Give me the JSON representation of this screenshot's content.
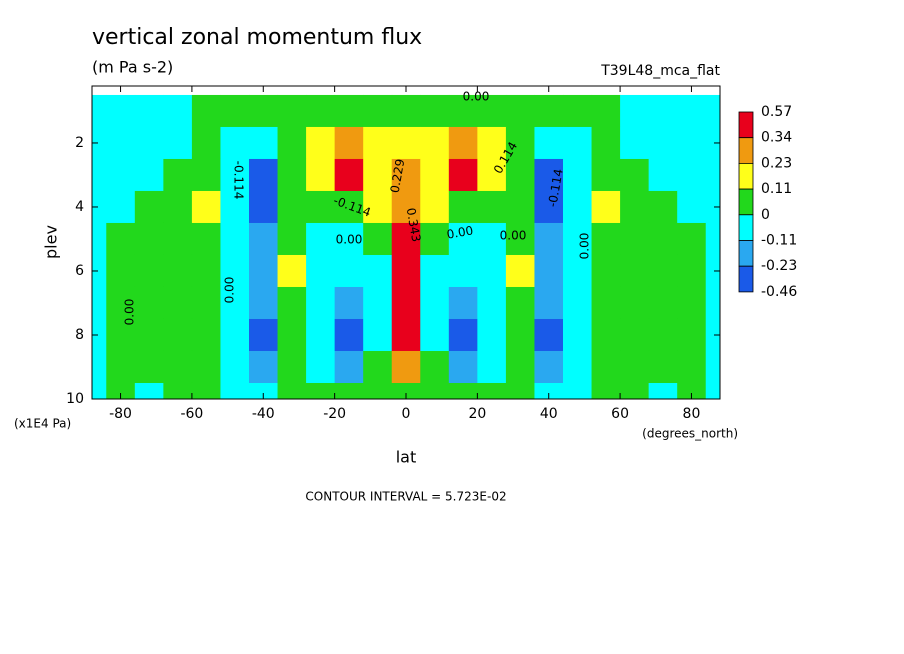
{
  "chart_data": {
    "type": "contour",
    "title": "vertical zonal momentum flux",
    "subtitle": "(m Pa s-2)",
    "dataset": "T39L48_mca_flat",
    "x_label": "lat",
    "x_unit": "(degrees_north)",
    "y_label": "plev",
    "y_unit": "(x1E4 Pa)",
    "footer": "CONTOUR INTERVAL = 5.723E-02",
    "xlim": [
      -88,
      88
    ],
    "ylim": [
      10,
      0.22
    ],
    "xticks": [
      -80,
      -60,
      -40,
      -20,
      0,
      20,
      40,
      60,
      80
    ],
    "yticks": [
      2,
      4,
      6,
      8,
      10
    ],
    "x": [
      -88,
      -80,
      -72,
      -64,
      -56,
      -48,
      -40,
      -32,
      -24,
      -16,
      -8,
      0,
      8,
      16,
      24,
      32,
      40,
      48,
      56,
      64,
      72,
      80,
      88
    ],
    "y": [
      1,
      2,
      3,
      4,
      5,
      6,
      7,
      8,
      9,
      10
    ],
    "z": [
      [
        -0.02,
        -0.02,
        -0.02,
        -0.02,
        0.02,
        0.02,
        0.02,
        0.02,
        0.03,
        0.05,
        0.05,
        0.05,
        0.05,
        0.05,
        0.03,
        0.02,
        0.02,
        0.02,
        0.02,
        -0.02,
        -0.02,
        -0.02,
        -0.02
      ],
      [
        -0.02,
        -0.02,
        -0.02,
        -0.02,
        0.02,
        -0.05,
        -0.1,
        0.05,
        0.2,
        0.3,
        0.2,
        0.15,
        0.2,
        0.3,
        0.2,
        0.05,
        -0.1,
        -0.05,
        0.02,
        -0.02,
        -0.02,
        -0.02,
        -0.02
      ],
      [
        -0.02,
        -0.02,
        -0.02,
        0.03,
        0.05,
        -0.1,
        -0.3,
        0.02,
        0.2,
        0.45,
        0.2,
        0.25,
        0.2,
        0.45,
        0.2,
        0.02,
        -0.3,
        -0.1,
        0.05,
        0.03,
        -0.02,
        -0.02,
        -0.02
      ],
      [
        -0.02,
        -0.02,
        0.02,
        0.05,
        0.15,
        -0.05,
        -0.25,
        0.02,
        0.02,
        0.1,
        0.15,
        0.3,
        0.15,
        0.1,
        0.02,
        0.02,
        -0.25,
        -0.05,
        0.15,
        0.05,
        0.02,
        -0.02,
        -0.02
      ],
      [
        -0.02,
        0.02,
        0.02,
        0.04,
        0.08,
        -0.05,
        -0.2,
        0.05,
        -0.05,
        -0.05,
        0.05,
        0.4,
        0.05,
        -0.05,
        -0.05,
        0.05,
        -0.2,
        -0.05,
        0.08,
        0.04,
        0.02,
        0.02,
        -0.02
      ],
      [
        -0.02,
        0.01,
        0.02,
        0.03,
        0.05,
        -0.05,
        -0.2,
        0.15,
        -0.08,
        -0.1,
        -0.02,
        0.45,
        -0.02,
        -0.1,
        -0.08,
        0.15,
        -0.2,
        -0.05,
        0.05,
        0.03,
        0.02,
        0.01,
        -0.02
      ],
      [
        -0.02,
        0.01,
        0.02,
        0.02,
        0.03,
        -0.05,
        -0.2,
        0.05,
        -0.1,
        -0.15,
        -0.05,
        0.6,
        -0.05,
        -0.15,
        -0.1,
        0.05,
        -0.2,
        -0.05,
        0.03,
        0.02,
        0.02,
        0.01,
        -0.02
      ],
      [
        -0.02,
        0.02,
        0.02,
        0.02,
        0.02,
        -0.05,
        -0.25,
        0.02,
        -0.1,
        -0.25,
        -0.05,
        0.6,
        -0.05,
        -0.25,
        -0.1,
        0.02,
        -0.25,
        -0.05,
        0.02,
        0.02,
        0.02,
        0.02,
        -0.02
      ],
      [
        -0.02,
        0.02,
        0.02,
        0.02,
        0.02,
        -0.05,
        -0.15,
        0.02,
        -0.05,
        -0.15,
        0.05,
        0.3,
        0.05,
        -0.15,
        -0.05,
        0.02,
        -0.15,
        -0.05,
        0.02,
        0.02,
        0.02,
        0.02,
        -0.02
      ],
      [
        -0.02,
        0.02,
        -0.02,
        0.02,
        0.02,
        -0.02,
        -0.05,
        0.02,
        0.02,
        0.02,
        0.02,
        0.05,
        0.02,
        0.02,
        0.02,
        0.02,
        -0.05,
        -0.02,
        0.02,
        0.02,
        -0.02,
        0.02,
        -0.02
      ]
    ],
    "levels": [
      0.57,
      0.34,
      0.23,
      0.11,
      0,
      -0.11,
      -0.23,
      -0.46
    ],
    "colors": [
      "#e8001c",
      "#f09a10",
      "#ffff1a",
      "#22d81c",
      "#00ffff",
      "#2aa8f0",
      "#1a5ae8"
    ],
    "contour_labels": [
      "0.00",
      "-0.114",
      "0.229",
      "0.343",
      "0.00",
      "0.00",
      "0.00",
      "0.114",
      "-0.114",
      "0.00",
      "0.00",
      "-0.114",
      "0.00"
    ]
  }
}
